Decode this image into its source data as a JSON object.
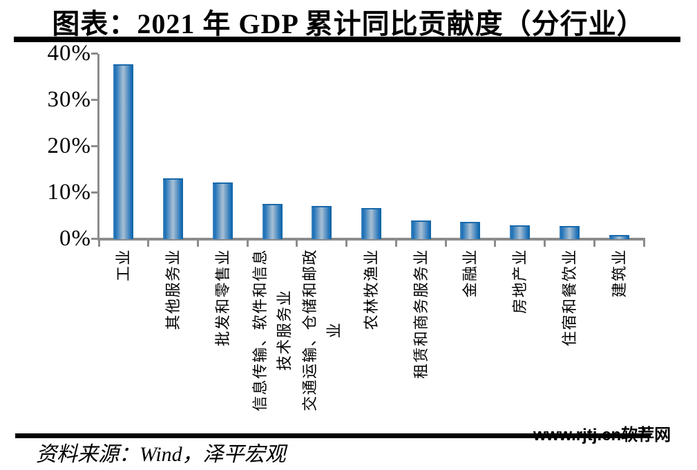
{
  "title": "图表：2021 年 GDP 累计同比贡献度（分行业）",
  "source_note": "资料来源：Wind，泽平宏观",
  "watermark": "www.rjtj.cn软荐网",
  "chart_data": {
    "type": "bar",
    "title": "图表：2021 年 GDP 累计同比贡献度（分行业）",
    "categories": [
      "工业",
      "其他服务业",
      "批发和零售业",
      "信息传输、软件和信息\n技术服务业",
      "交通运输、仓储和邮政\n业",
      "农林牧渔业",
      "租赁和商务服务业",
      "金融业",
      "房地产业",
      "住宿和餐饮业",
      "建筑业"
    ],
    "values": [
      37.8,
      13.2,
      12.2,
      7.6,
      7.1,
      6.7,
      4.0,
      3.7,
      3.0,
      2.8,
      0.9
    ],
    "unit": "%",
    "xlabel": "",
    "ylabel": "",
    "ylim": [
      0,
      40
    ],
    "yticks": [
      {
        "label": "0%",
        "value": 0
      },
      {
        "label": "10%",
        "value": 10
      },
      {
        "label": "20%",
        "value": 20
      },
      {
        "label": "30%",
        "value": 30
      },
      {
        "label": "40%",
        "value": 40
      }
    ],
    "grid": false,
    "legend": false,
    "colors": {
      "bar_edge": "#1a6fb7",
      "bar_edge_light": "#4688bd",
      "bar_center": "#a9c0d4",
      "bar_edge_dark": "#11639f",
      "bar_top_line": "#1869ab",
      "axis": "#8c8c8c",
      "text": "#000000"
    }
  }
}
